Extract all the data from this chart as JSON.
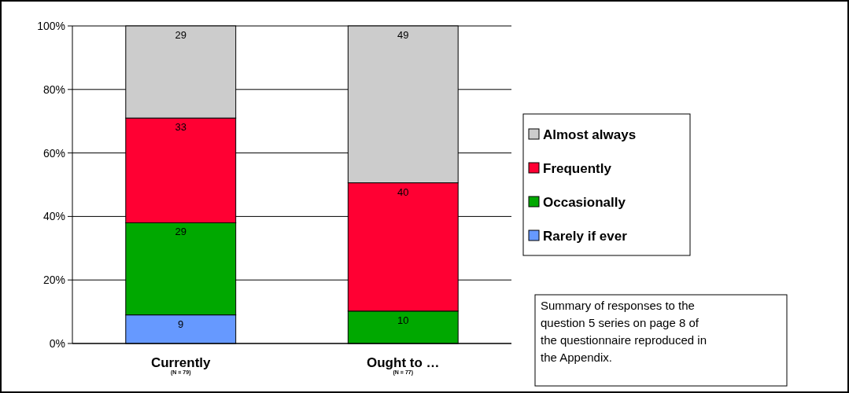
{
  "chart_data": {
    "type": "bar",
    "stacked": true,
    "categories": [
      "Currently",
      "Ought to …"
    ],
    "series": [
      {
        "name": "Rarely if ever",
        "color": "#6699ff",
        "values": [
          9,
          null
        ],
        "value_labels": [
          "9",
          null
        ]
      },
      {
        "name": "Occasionally",
        "color": "#00a800",
        "values": [
          29,
          10.2
        ],
        "value_labels": [
          "29",
          "10"
        ]
      },
      {
        "name": "Frequently",
        "color": "#ff0033",
        "values": [
          33,
          40.4
        ],
        "value_labels": [
          "33",
          "40"
        ]
      },
      {
        "name": "Almost always",
        "color": "#cccccc",
        "values": [
          29,
          49.4
        ],
        "value_labels": [
          "29",
          "49"
        ]
      }
    ],
    "ylim": [
      0,
      100
    ],
    "yticks": [
      {
        "value": 0,
        "label": "0%"
      },
      {
        "value": 20,
        "label": "20%"
      },
      {
        "value": 40,
        "label": "40%"
      },
      {
        "value": 60,
        "label": "60%"
      },
      {
        "value": 80,
        "label": "80%"
      },
      {
        "value": 100,
        "label": "100%"
      }
    ],
    "grid": "y",
    "legend": "right",
    "annotations": [
      "(N = 79)",
      "(N = 77)",
      "Summary of responses to the question 5 series on page 8 of the questionnaire reproduced in the Appendix."
    ]
  }
}
